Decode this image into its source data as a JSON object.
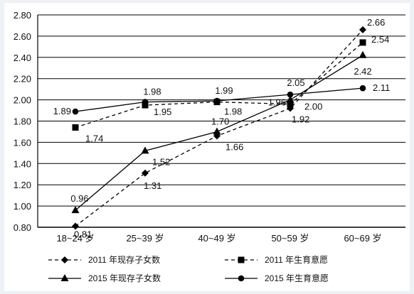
{
  "chart_data": {
    "type": "line",
    "categories": [
      "18~24 岁",
      "25~39 岁",
      "40~49 岁",
      "50~59 岁",
      "60~69 岁"
    ],
    "ylim": [
      0.8,
      2.8
    ],
    "yticks": [
      "0.80",
      "1.00",
      "1.20",
      "1.40",
      "1.60",
      "1.80",
      "2.00",
      "2.20",
      "2.40",
      "2.60",
      "2.80"
    ],
    "grid": true,
    "legend_position": "bottom",
    "series": [
      {
        "name": "2011 年现存子女数",
        "marker": "diamond",
        "line": "dashed",
        "values": [
          0.81,
          1.31,
          1.66,
          1.92,
          2.66
        ],
        "labels": [
          "0.81",
          "1.31",
          "1.66",
          "1.92",
          "2.66"
        ]
      },
      {
        "name": "2011 年生育意愿",
        "marker": "square",
        "line": "dashed",
        "values": [
          1.74,
          1.95,
          1.98,
          1.96,
          2.54
        ],
        "labels": [
          "1.74",
          "1.95",
          "1.98",
          "1.96",
          "2.54"
        ]
      },
      {
        "name": "2015 年现存子女数",
        "marker": "triangle",
        "line": "solid",
        "values": [
          0.96,
          1.52,
          1.7,
          2.0,
          2.42
        ],
        "labels": [
          "0.96",
          "1.52",
          "1.70",
          "2.00",
          "2.42"
        ]
      },
      {
        "name": "2015 年生育意愿",
        "marker": "circle",
        "line": "solid",
        "values": [
          1.89,
          1.98,
          1.99,
          2.05,
          2.11
        ],
        "labels": [
          "1.89",
          "1.98",
          "1.99",
          "2.05",
          "2.11"
        ]
      }
    ]
  }
}
